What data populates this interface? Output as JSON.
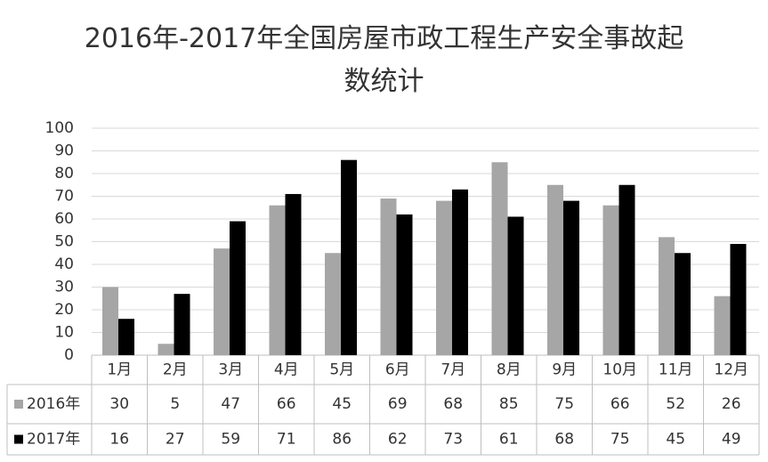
{
  "chart_data": {
    "type": "bar",
    "title": "2016年-2017年全国房屋市政工程生产安全事故起数统计",
    "categories": [
      "1月",
      "2月",
      "3月",
      "4月",
      "5月",
      "6月",
      "7月",
      "8月",
      "9月",
      "10月",
      "11月",
      "12月"
    ],
    "series": [
      {
        "name": "2016年",
        "color": "#a6a6a6",
        "values": [
          30,
          5,
          47,
          66,
          45,
          69,
          68,
          85,
          75,
          66,
          52,
          26
        ]
      },
      {
        "name": "2017年",
        "color": "#000000",
        "values": [
          16,
          27,
          59,
          71,
          86,
          62,
          73,
          61,
          68,
          75,
          45,
          49
        ]
      }
    ],
    "ylim": [
      0,
      100
    ],
    "yticks": [
      0,
      10,
      20,
      30,
      40,
      50,
      60,
      70,
      80,
      90,
      100
    ],
    "grid": true,
    "data_table": true
  }
}
